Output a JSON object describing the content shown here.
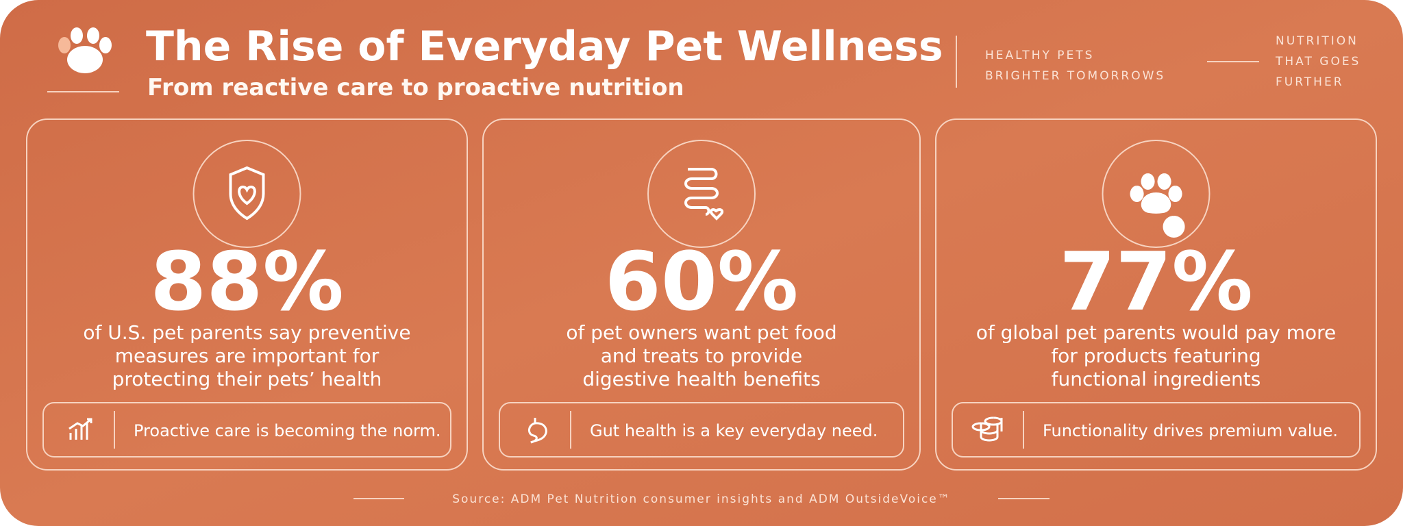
{
  "header": {
    "title": "The Rise of Everyday Pet Wellness",
    "subtitle": "From reactive care to proactive nutrition",
    "tagline_left": [
      "HEALTHY PETS",
      "BRIGHTER TOMORROWS"
    ],
    "tagline_right": [
      "NUTRITION",
      "THAT GOES",
      "FURTHER"
    ]
  },
  "cards": [
    {
      "stat": "88%",
      "description": [
        "of U.S. pet parents say preventive",
        "measures are important for",
        "protecting their pets’ health"
      ],
      "note": "Proactive care is becoming the norm."
    },
    {
      "stat": "60%",
      "description": [
        "of pet owners want pet food",
        "and treats to provide",
        "digestive health benefits"
      ],
      "note": "Gut health is a key everyday need."
    },
    {
      "stat": "77%",
      "description": [
        "of global pet parents would pay more",
        "for products featuring",
        "functional ingredients"
      ],
      "note": "Functionality drives premium value."
    }
  ],
  "footer": {
    "source": "Source: ADM Pet Nutrition consumer insights and ADM OutsideVoice™"
  }
}
